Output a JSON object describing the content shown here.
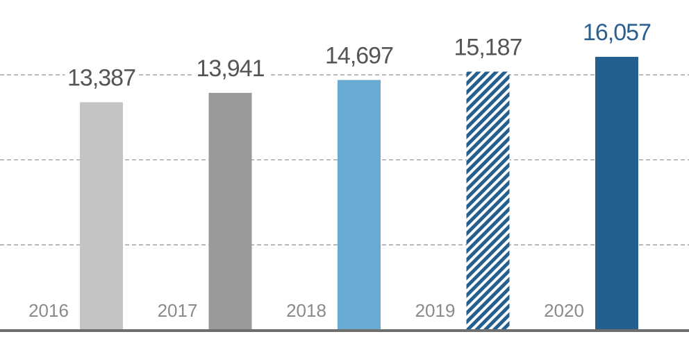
{
  "chart_data": {
    "type": "bar",
    "categories": [
      "2016",
      "2017",
      "2018",
      "2019",
      "2020"
    ],
    "values": [
      13387,
      13941,
      14697,
      15187,
      16057
    ],
    "value_labels": [
      "13,387",
      "13,941",
      "14,697",
      "15,187",
      "16,057"
    ],
    "colors": [
      "#c4c4c4",
      "#9a9a9a",
      "#69aad2",
      "#255f8e",
      "#255f8e"
    ],
    "styles": [
      "solid",
      "solid",
      "solid",
      "hatched",
      "solid"
    ],
    "label_colors": [
      "#555555",
      "#555555",
      "#555555",
      "#555555",
      "#2b5f90"
    ],
    "ylim": [
      0,
      19400
    ],
    "yticks": [
      5000,
      10000,
      15000
    ],
    "grid": true
  }
}
